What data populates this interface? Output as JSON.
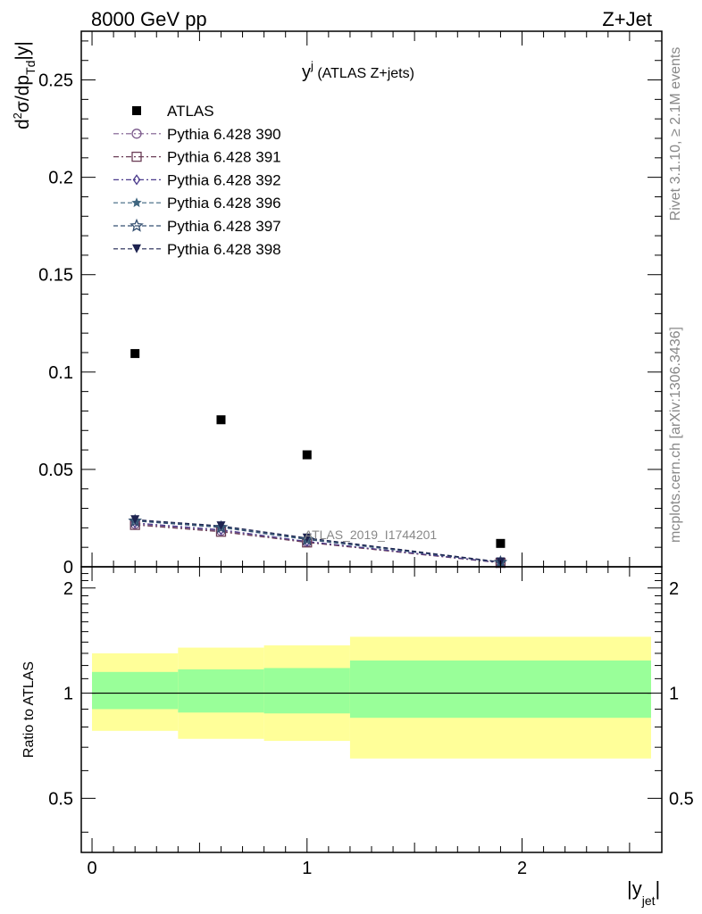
{
  "header": {
    "left": "8000 GeV pp",
    "right": "Z+Jet"
  },
  "plot_title": {
    "main": "y",
    "sup": "j",
    "sub": " (ATLAS Z+jets)"
  },
  "axes": {
    "top_ylabel": {
      "main": "d",
      "sup": "2",
      "mid": "σ/dp",
      "sub": "Td",
      "tail": "|y|"
    },
    "bottom_ylabel": "Ratio to ATLAS",
    "xlabel": {
      "main": "|y",
      "sub": "jet",
      "tail": "|"
    },
    "top_yticks": [
      "0",
      "0.05",
      "0.1",
      "0.15",
      "0.2",
      "0.25"
    ],
    "bottom_yticks": [
      "0.5",
      "1",
      "2"
    ],
    "xticks": [
      "0",
      "1",
      "2"
    ]
  },
  "watermark": "ATLAS_2019_I1744201",
  "side_texts": {
    "rivet": "Rivet 3.1.10, ≥ 2.1M events",
    "mcplots": "mcplots.cern.ch [arXiv:1306.3436]"
  },
  "legend": [
    {
      "label": "ATLAS",
      "marker": "filled-square",
      "color": "#000000"
    },
    {
      "label": "Pythia 6.428 390",
      "marker": "open-circle",
      "color": "#7b5a8c"
    },
    {
      "label": "Pythia 6.428 391",
      "marker": "open-square",
      "color": "#6b3e57"
    },
    {
      "label": "Pythia 6.428 392",
      "marker": "open-diamond",
      "color": "#4b3a8c"
    },
    {
      "label": "Pythia 6.428 396",
      "marker": "filled-star",
      "color": "#3f6680"
    },
    {
      "label": "Pythia 6.428 397",
      "marker": "open-star",
      "color": "#344f70"
    },
    {
      "label": "Pythia 6.428 398",
      "marker": "filled-triangle-down",
      "color": "#1e2350"
    }
  ],
  "chart_data": {
    "type": "scatter",
    "xlim": [
      -0.05,
      2.65
    ],
    "top_ylim": [
      0,
      0.275
    ],
    "ratio_ylim": [
      0.35,
      2.3
    ],
    "ratio_scale": "log",
    "x": [
      0.2,
      0.6,
      1.0,
      1.9
    ],
    "bin_edges": [
      0,
      0.4,
      0.8,
      1.2,
      2.6
    ],
    "atlas": [
      0.1095,
      0.0755,
      0.0575,
      0.012
    ],
    "series": [
      {
        "name": "Pythia 6.428 390",
        "values": [
          0.022,
          0.0185,
          0.0128,
          0.0022
        ]
      },
      {
        "name": "Pythia 6.428 391",
        "values": [
          0.0215,
          0.018,
          0.0125,
          0.002
        ]
      },
      {
        "name": "Pythia 6.428 392",
        "values": [
          0.0225,
          0.019,
          0.013,
          0.0021
        ]
      },
      {
        "name": "Pythia 6.428 396",
        "values": [
          0.0238,
          0.0205,
          0.0143,
          0.0024
        ]
      },
      {
        "name": "Pythia 6.428 397",
        "values": [
          0.0235,
          0.0202,
          0.014,
          0.0023
        ]
      },
      {
        "name": "Pythia 6.428 398",
        "values": [
          0.0242,
          0.021,
          0.0148,
          0.0025
        ]
      }
    ],
    "ratio_band_inner": [
      [
        0.9,
        1.15
      ],
      [
        0.88,
        1.17
      ],
      [
        0.875,
        1.18
      ],
      [
        0.85,
        1.24
      ]
    ],
    "ratio_band_outer": [
      [
        0.78,
        1.3
      ],
      [
        0.74,
        1.35
      ],
      [
        0.73,
        1.37
      ],
      [
        0.65,
        1.45
      ]
    ],
    "band_colors": {
      "inner": "#99ff99",
      "outer": "#ffff99"
    }
  }
}
